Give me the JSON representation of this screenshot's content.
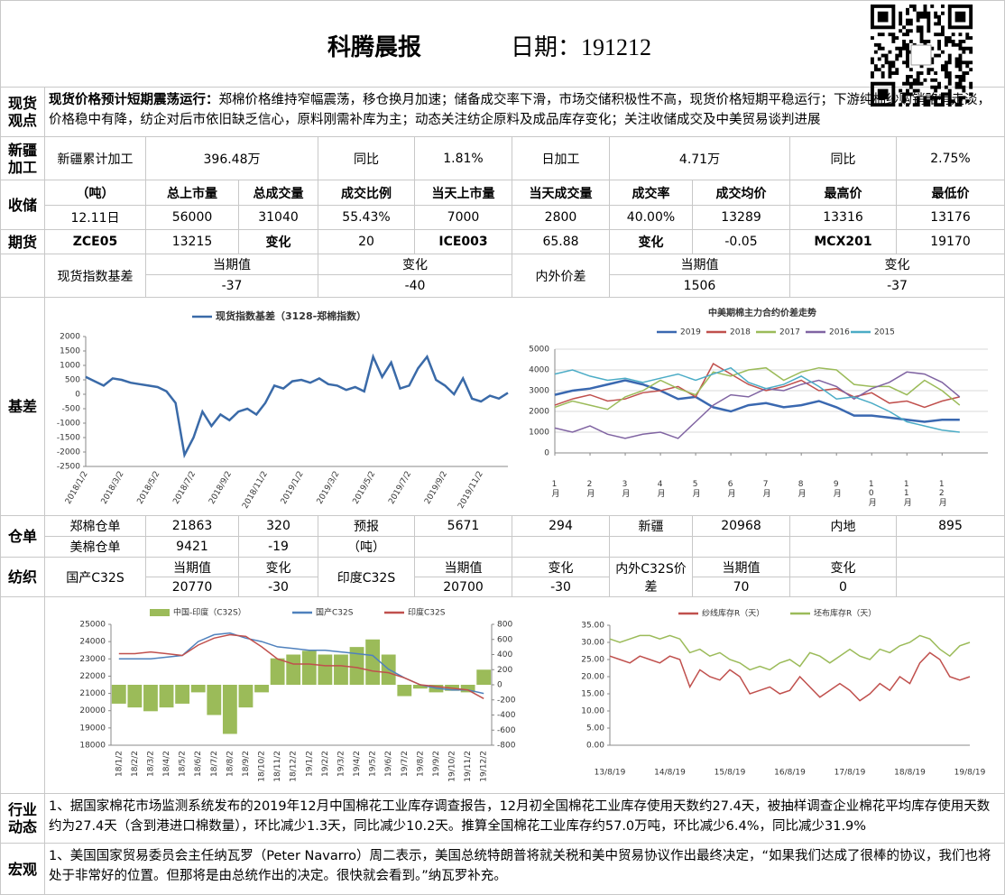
{
  "header": {
    "title": "科腾晨报",
    "date": "日期：191212"
  },
  "spot_view": {
    "label": "现货观点",
    "heading": "现货价格预计短期震荡运行：",
    "text": "郑棉价格维持窄幅震荡，移仓换月加速；储备成交率下滑，市场交储积极性不高，现货价格短期平稳运行；下游纯棉纱购销略有走淡，价格稳中有降，纺企对后市依旧缺乏信心，原料刚需补库为主；动态关注纺企原料及成品库存变化；关注收储成交及中美贸易谈判进展"
  },
  "xinjiang": {
    "label": "新疆加工",
    "cells": [
      "新疆累计加工",
      "396.48万",
      "同比",
      "1.81%",
      "日加工",
      "4.71万",
      "同比",
      "2.75%"
    ]
  },
  "reserve": {
    "label": "收储",
    "header": [
      "（吨）",
      "总上市量",
      "总成交量",
      "成交比例",
      "当天上市量",
      "当天成交量",
      "成交率",
      "成交均价",
      "最高价",
      "最低价"
    ],
    "row": [
      "12.11日",
      "56000",
      "31040",
      "55.43%",
      "7000",
      "2800",
      "40.00%",
      "13289",
      "13316",
      "13176"
    ]
  },
  "futures": {
    "label": "期货",
    "cells": [
      "ZCE05",
      "13215",
      "变化",
      "20",
      "ICE003",
      "65.88",
      "变化",
      "-0.05",
      "MCX201",
      "19170"
    ]
  },
  "basis": {
    "label": "现货指数基差",
    "current": "当期值",
    "change": "变化",
    "current_value": "-37",
    "change_value": "-40",
    "spread_label": "内外价差",
    "spread_current": "当期值",
    "spread_change": "变化",
    "spread_current_value": "1506",
    "spread_change_value": "-37"
  },
  "basis_section": {
    "label": "基差"
  },
  "warehouse": {
    "label": "仓单",
    "rows": [
      [
        "郑棉仓单",
        "21863",
        "320",
        "预报",
        "5671",
        "294",
        "新疆",
        "20968",
        "内地",
        "895"
      ],
      [
        "美棉仓单",
        "9421",
        "-19",
        "（吨）"
      ]
    ]
  },
  "textile": {
    "label": "纺织",
    "domestic": {
      "name": "国产C32S",
      "current_label": "当期值",
      "current": "20770",
      "change_label": "变化",
      "change": "-30"
    },
    "india": {
      "name": "印度C32S",
      "current_label": "当期值",
      "current": "20700",
      "change_label": "变化",
      "change": "-30"
    },
    "spread": {
      "name": "内外C32S价差",
      "current_label": "当期值",
      "current": "70",
      "change_label": "变化",
      "change": "0"
    }
  },
  "industry": {
    "label": "行业动态",
    "text": "1、据国家棉花市场监测系统发布的2019年12月中国棉花工业库存调查报告，12月初全国棉花工业库存使用天数约27.4天，被抽样调查企业棉花平均库存使用天数约为27.4天（含到港进口棉数量），环比减少1.3天，同比减少10.2天。推算全国棉花工业库存约57.0万吨，环比减少6.4%，同比减少31.9%"
  },
  "macro": {
    "label": "宏观",
    "text": "1、美国国家贸易委员会主任纳瓦罗（Peter Navarro）周二表示，美国总统特朗普将就关税和美中贸易协议作出最终决定，“如果我们达成了很棒的协议，我们也将处于非常好的位置。但那将是由总统作出的决定。很快就会看到。”纳瓦罗补充。"
  },
  "chart_data": [
    {
      "type": "line",
      "categories": [
        "2018/1/2",
        null,
        null,
        null,
        "2018/3/2",
        null,
        null,
        null,
        "2018/5/2",
        null,
        null,
        null,
        "2018/7/2",
        null,
        null,
        null,
        "2018/9/2",
        null,
        null,
        null,
        "2018/11/2",
        null,
        null,
        null,
        "2019/1/2",
        null,
        null,
        null,
        "2019/3/2",
        null,
        null,
        null,
        "2019/5/2",
        null,
        null,
        null,
        "2019/7/2",
        null,
        null,
        null,
        "2019/9/2",
        null,
        null,
        null,
        "2019/11/2",
        null,
        null,
        null
      ],
      "series": [
        {
          "name": "现货指数基差（3128-郑棉指数）",
          "color": "#3a6aa8",
          "values": [
            600,
            450,
            300,
            550,
            500,
            400,
            350,
            300,
            250,
            100,
            -300,
            -2100,
            -1500,
            -600,
            -1100,
            -700,
            -900,
            -600,
            -500,
            -700,
            -300,
            300,
            200,
            450,
            500,
            400,
            550,
            350,
            300,
            150,
            250,
            100,
            1300,
            600,
            1100,
            200,
            300,
            900,
            1300,
            500,
            300,
            0,
            550,
            -150,
            -250,
            -50,
            -150,
            50
          ]
        }
      ],
      "ylim": [
        -2500,
        2000
      ],
      "yticks": [
        -2500,
        -2000,
        -1500,
        -1000,
        -500,
        0,
        500,
        1000,
        1500,
        2000
      ],
      "grid": false
    },
    {
      "type": "line",
      "title": "中美期棉主力合约价差走势",
      "x": [
        1,
        1.5,
        2,
        2.5,
        3,
        3.5,
        4,
        4.5,
        5,
        5.5,
        6,
        6.5,
        7,
        7.5,
        8,
        8.5,
        9,
        9.5,
        10,
        10.5,
        11,
        11.5,
        12,
        12.5
      ],
      "xlim": [
        1,
        13.3
      ],
      "xticks": [
        {
          "value": 1,
          "label": "1月"
        },
        {
          "value": 2,
          "label": "2月"
        },
        {
          "value": 3,
          "label": "3月"
        },
        {
          "value": 4,
          "label": "4月"
        },
        {
          "value": 5,
          "label": "5月"
        },
        {
          "value": 6,
          "label": "6月"
        },
        {
          "value": 7,
          "label": "7月"
        },
        {
          "value": 8,
          "label": "8月"
        },
        {
          "value": 9,
          "label": "9月"
        },
        {
          "value": 10,
          "label": "10月"
        },
        {
          "value": 11,
          "label": "11月"
        },
        {
          "value": 12,
          "label": "12月"
        }
      ],
      "series": [
        {
          "name": "2019",
          "color": "#3a68b0",
          "values": [
            2800,
            3000,
            3100,
            3300,
            3500,
            3300,
            3000,
            2600,
            2700,
            2200,
            2000,
            2300,
            2400,
            2200,
            2300,
            2500,
            2200,
            1800,
            1800,
            1700,
            1600,
            1500,
            1600,
            1600
          ]
        },
        {
          "name": "2018",
          "color": "#c0504d",
          "values": [
            2300,
            2600,
            2800,
            2500,
            2600,
            2900,
            3000,
            3200,
            2700,
            4300,
            3800,
            3300,
            3000,
            3200,
            3500,
            3000,
            3100,
            2700,
            2900,
            2400,
            2500,
            2200,
            2500,
            2700
          ]
        },
        {
          "name": "2017",
          "color": "#9bbb59",
          "values": [
            2200,
            2500,
            2300,
            2100,
            2700,
            3000,
            3500,
            3100,
            2800,
            3900,
            3700,
            4000,
            4100,
            3500,
            3900,
            4100,
            4000,
            3300,
            3200,
            3200,
            2800,
            3500,
            3000,
            2300
          ]
        },
        {
          "name": "2016",
          "color": "#8064a2",
          "values": [
            1200,
            1000,
            1300,
            900,
            700,
            900,
            1000,
            700,
            1500,
            2300,
            2800,
            2700,
            3100,
            3000,
            3300,
            3500,
            3200,
            2600,
            3100,
            3400,
            3900,
            3800,
            3400,
            2700
          ]
        },
        {
          "name": "2015",
          "color": "#4bacc6",
          "values": [
            3800,
            4000,
            3700,
            3500,
            3600,
            3400,
            3600,
            3800,
            3500,
            3800,
            4100,
            3400,
            3100,
            3300,
            3700,
            3200,
            2600,
            2700,
            2400,
            2000,
            1500,
            1300,
            1100,
            1000
          ]
        }
      ],
      "ylim": [
        0,
        5000
      ],
      "yticks": [
        0,
        1000,
        2000,
        3000,
        4000,
        5000
      ],
      "grid": true
    },
    {
      "type": "combo",
      "categories": [
        "18/1/2",
        "18/2/2",
        "18/3/2",
        "18/4/2",
        "18/5/2",
        "18/6/2",
        "18/7/2",
        "18/8/2",
        "18/9/2",
        "18/10/2",
        "18/11/2",
        "18/12/2",
        "19/1/2",
        "19/2/2",
        "19/3/2",
        "19/4/2",
        "19/5/2",
        "19/6/2",
        "19/7/2",
        "19/8/2",
        "19/9/2",
        "19/10/2",
        "19/11/2",
        "19/12/2"
      ],
      "series": [
        {
          "name": "中国-印度（C32S）",
          "type": "bar",
          "axis": "y2",
          "color": "#9bbb59",
          "values": [
            -250,
            -300,
            -350,
            -300,
            -250,
            -100,
            -400,
            -650,
            -300,
            -100,
            350,
            400,
            450,
            400,
            400,
            500,
            600,
            400,
            -150,
            -50,
            -100,
            -80,
            -100,
            200
          ]
        },
        {
          "name": "国产C32S",
          "type": "line",
          "color": "#4f81bd",
          "values": [
            23000,
            23000,
            23000,
            23100,
            23200,
            24000,
            24400,
            24500,
            24200,
            24000,
            23700,
            23600,
            23500,
            23500,
            23400,
            23300,
            23200,
            22400,
            21900,
            21500,
            21300,
            21200,
            21200,
            21000
          ]
        },
        {
          "name": "印度C32S",
          "type": "line",
          "color": "#c0504d",
          "values": [
            23300,
            23300,
            23400,
            23300,
            23200,
            23800,
            24200,
            24400,
            24300,
            23700,
            23000,
            22700,
            22700,
            22600,
            22600,
            22500,
            22300,
            22200,
            21900,
            21500,
            21400,
            21300,
            21200,
            20700
          ]
        }
      ],
      "ylim": [
        18000,
        25000
      ],
      "yticks": [
        18000,
        19000,
        20000,
        21000,
        22000,
        23000,
        24000,
        25000
      ],
      "y2lim": [
        -800,
        800
      ],
      "y2ticks": [
        -800,
        -600,
        -400,
        -200,
        0,
        200,
        400,
        600,
        800
      ],
      "grid": false
    },
    {
      "type": "line",
      "categories": [
        "13/8/19",
        null,
        null,
        null,
        null,
        null,
        "14/8/19",
        null,
        null,
        null,
        null,
        null,
        "15/8/19",
        null,
        null,
        null,
        null,
        null,
        "16/8/19",
        null,
        null,
        null,
        null,
        null,
        "17/8/19",
        null,
        null,
        null,
        null,
        null,
        "18/8/19",
        null,
        null,
        null,
        null,
        null,
        "19/8/19"
      ],
      "series": [
        {
          "name": "纱线库存R（天）",
          "color": "#c0504d",
          "values": [
            26,
            25,
            24,
            26,
            25,
            24,
            26,
            25,
            17,
            22,
            20,
            19,
            22,
            20,
            15,
            16,
            17,
            15,
            16,
            20,
            17,
            14,
            16,
            18,
            16,
            13,
            15,
            18,
            16,
            20,
            18,
            24,
            27,
            25,
            20,
            19,
            20
          ]
        },
        {
          "name": "坯布库存R（天）",
          "color": "#9bbb59",
          "values": [
            31,
            30,
            31,
            32,
            32,
            31,
            32,
            31,
            27,
            28,
            26,
            27,
            25,
            24,
            22,
            23,
            22,
            24,
            25,
            23,
            27,
            26,
            24,
            26,
            28,
            26,
            25,
            28,
            27,
            29,
            30,
            32,
            31,
            28,
            26,
            29,
            30
          ]
        }
      ],
      "ylim": [
        0,
        35
      ],
      "yticks": [
        {
          "value": 0,
          "label": "0.00"
        },
        {
          "value": 5,
          "label": "5.00"
        },
        {
          "value": 10,
          "label": "10.00"
        },
        {
          "value": 15,
          "label": "15.00"
        },
        {
          "value": 20,
          "label": "20.00"
        },
        {
          "value": 25,
          "label": "25.00"
        },
        {
          "value": 30,
          "label": "30.00"
        },
        {
          "value": 35,
          "label": "35.00"
        }
      ],
      "grid": false
    }
  ]
}
